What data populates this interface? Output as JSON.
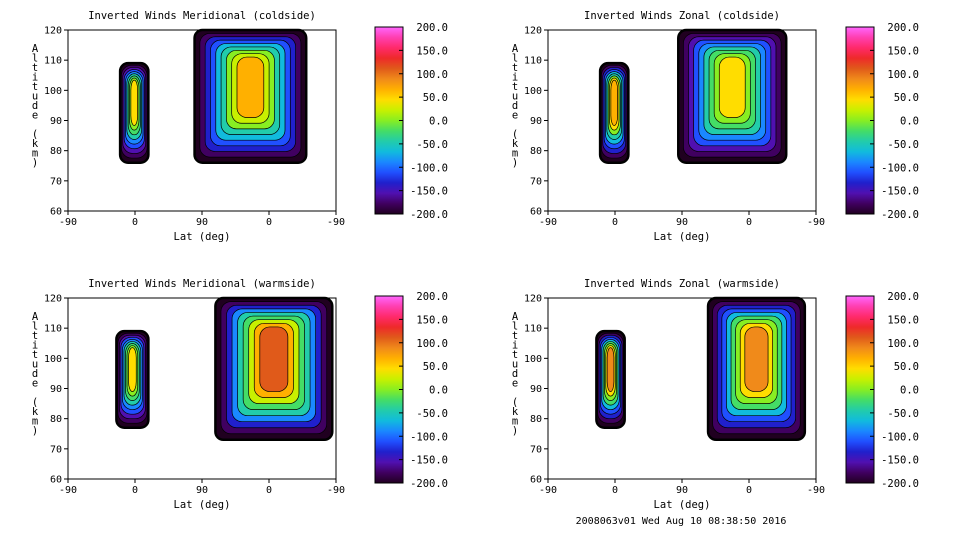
{
  "footer": "2008063v01 Wed Aug 10 08:38:50 2016",
  "colorbar": {
    "ticks": [
      "200.0",
      "150.0",
      "100.0",
      "50.0",
      "0.0",
      "-50.0",
      "-100.0",
      "-150.0",
      "-200.0"
    ],
    "tick_values": [
      200,
      150,
      100,
      50,
      0,
      -50,
      -100,
      -150,
      -200
    ],
    "colors": [
      "#ff66ff",
      "#ff3fb0",
      "#ff2a6a",
      "#ee2a2a",
      "#e05a1a",
      "#f08a1a",
      "#ffb000",
      "#ffdd00",
      "#c8f000",
      "#88ee22",
      "#44dd66",
      "#22ccaa",
      "#11bbdd",
      "#1a88ff",
      "#2050ff",
      "#2020cc",
      "#5010b0",
      "#400060",
      "#200020"
    ]
  },
  "chart_data": [
    {
      "type": "contour",
      "title": "Inverted Winds Meridional (coldside)",
      "xlabel": "Lat (deg)",
      "ylabel": "Altitude (km)",
      "x_ticks": [
        "-90",
        "0",
        "90",
        "0",
        "-90"
      ],
      "y_ticks": [
        "120",
        "110",
        "100",
        "90",
        "80",
        "70",
        "60"
      ],
      "y_tick_values": [
        120,
        110,
        100,
        90,
        80,
        70,
        60
      ],
      "ylim": [
        60,
        120
      ],
      "colorbar_range": [
        -200,
        200
      ],
      "regions": [
        {
          "x_range": [
            -20,
            18
          ],
          "alt_range": [
            76,
            109
          ],
          "peak_value": 40
        },
        {
          "x_range": [
            100,
            -50
          ],
          "alt_range": [
            76,
            120
          ],
          "peak_value": 55
        }
      ]
    },
    {
      "type": "contour",
      "title": "Inverted Winds Zonal (coldside)",
      "xlabel": "Lat (deg)",
      "ylabel": "Altitude (km)",
      "x_ticks": [
        "-90",
        "0",
        "90",
        "0",
        "-90"
      ],
      "y_ticks": [
        "120",
        "110",
        "100",
        "90",
        "80",
        "70",
        "60"
      ],
      "y_tick_values": [
        120,
        110,
        100,
        90,
        80,
        70,
        60
      ],
      "ylim": [
        60,
        120
      ],
      "colorbar_range": [
        -200,
        200
      ],
      "regions": [
        {
          "x_range": [
            -20,
            18
          ],
          "alt_range": [
            76,
            109
          ],
          "peak_value": 65
        },
        {
          "x_range": [
            95,
            -50
          ],
          "alt_range": [
            76,
            120
          ],
          "peak_value": 40
        }
      ]
    },
    {
      "type": "contour",
      "title": "Inverted Winds Meridional (warmside)",
      "xlabel": "Lat (deg)",
      "ylabel": "Altitude (km)",
      "x_ticks": [
        "-90",
        "0",
        "90",
        "0",
        "-90"
      ],
      "y_ticks": [
        "120",
        "110",
        "100",
        "90",
        "80",
        "70",
        "60"
      ],
      "y_tick_values": [
        120,
        110,
        100,
        90,
        80,
        70,
        60
      ],
      "ylim": [
        60,
        120
      ],
      "colorbar_range": [
        -200,
        200
      ],
      "regions": [
        {
          "x_range": [
            -25,
            18
          ],
          "alt_range": [
            77,
            109
          ],
          "peak_value": 40
        },
        {
          "x_range": [
            72,
            -85
          ],
          "alt_range": [
            73,
            120
          ],
          "peak_value": 100
        }
      ]
    },
    {
      "type": "contour",
      "title": "Inverted Winds Zonal (warmside)",
      "xlabel": "Lat (deg)",
      "ylabel": "Altitude (km)",
      "x_ticks": [
        "-90",
        "0",
        "90",
        "0",
        "-90"
      ],
      "y_ticks": [
        "120",
        "110",
        "100",
        "90",
        "80",
        "70",
        "60"
      ],
      "y_tick_values": [
        120,
        110,
        100,
        90,
        80,
        70,
        60
      ],
      "ylim": [
        60,
        120
      ],
      "colorbar_range": [
        -200,
        200
      ],
      "regions": [
        {
          "x_range": [
            -25,
            13
          ],
          "alt_range": [
            77,
            109
          ],
          "peak_value": 80
        },
        {
          "x_range": [
            55,
            -75
          ],
          "alt_range": [
            73,
            120
          ],
          "peak_value": 80
        }
      ]
    }
  ]
}
